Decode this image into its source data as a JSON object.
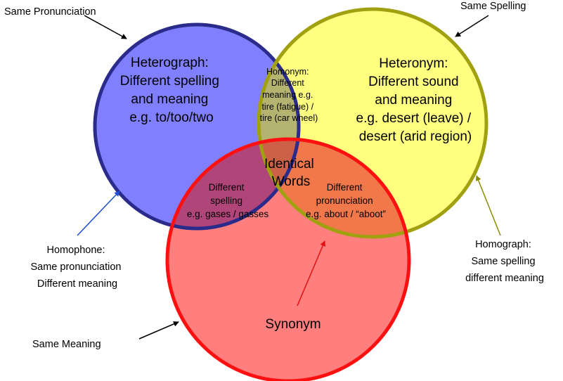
{
  "colors": {
    "blue_fill": "#8080ff",
    "blue_stroke": "#2b2b8c",
    "yellow_fill": "#ffff80",
    "yellow_stroke": "#a0a010",
    "red_fill": "#ff7f7f",
    "red_stroke": "#ff1010",
    "overlap_blue_yellow": "#b4b470",
    "overlap_blue_red": "#b0457a",
    "overlap_yellow_red": "#f0784a",
    "overlap_all": "#cc6147",
    "arrow_black": "#000000",
    "arrow_blue": "#1f4fd0",
    "arrow_olive": "#8c8c00",
    "arrow_red": "#e01010"
  },
  "callouts": {
    "same_pronunciation": "Same Pronunciation",
    "same_spelling": "Same Spelling",
    "same_meaning": "Same Meaning",
    "homophone": [
      "Homophone:",
      "Same pronunciation",
      "Different meaning"
    ],
    "homograph": [
      "Homograph:",
      "Same spelling",
      "different meaning"
    ]
  },
  "regions": {
    "heterograph": [
      "Heterograph:",
      "Different spelling",
      "and meaning",
      "e.g. to/too/two"
    ],
    "heteronym": [
      "Heteronym:",
      "Different sound",
      "and meaning",
      "e.g. desert (leave) /",
      "desert (arid region)"
    ],
    "homonym": [
      "Homonym:",
      "Different",
      "meaning e.g.",
      "tire (fatigue) /",
      "tire (car wheel)"
    ],
    "identical": [
      "Identical",
      "Words"
    ],
    "diff_spelling": [
      "Different",
      "spelling",
      "e.g. gases / gasses"
    ],
    "diff_pronunciation": [
      "Different",
      "pronunciation",
      "e.g. about / “aboot”"
    ],
    "synonym": "Synonym"
  }
}
